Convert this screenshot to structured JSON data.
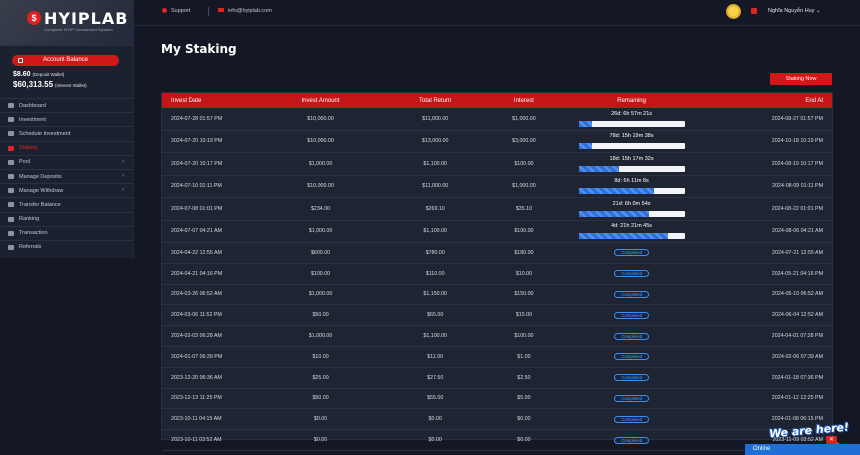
{
  "brand": {
    "name": "HYIPLAB",
    "tagline": "Complete HYIP Investment System"
  },
  "topbar": {
    "support_label": "Support",
    "email": "info@hyiplab.com",
    "user_name": "Nghĩa Nguyễn Huy"
  },
  "account": {
    "button_label": "Account Balance",
    "deposit_amount": "$8.60",
    "deposit_label": "(Deposit Wallet)",
    "interest_amount": "$60,313.55",
    "interest_label": "(Interest Wallet)"
  },
  "sidebar": {
    "items": [
      {
        "label": "Dashboard",
        "has_children": false,
        "active": false
      },
      {
        "label": "Investment",
        "has_children": false,
        "active": false
      },
      {
        "label": "Schedule Investment",
        "has_children": false,
        "active": false
      },
      {
        "label": "Staking",
        "has_children": false,
        "active": true
      },
      {
        "label": "Pool",
        "has_children": true,
        "active": false
      },
      {
        "label": "Manage Deposits",
        "has_children": true,
        "active": false
      },
      {
        "label": "Manage Withdraw",
        "has_children": true,
        "active": false
      },
      {
        "label": "Transfer Balance",
        "has_children": false,
        "active": false
      },
      {
        "label": "Ranking",
        "has_children": false,
        "active": false
      },
      {
        "label": "Transaction",
        "has_children": false,
        "active": false
      },
      {
        "label": "Referrals",
        "has_children": false,
        "active": false
      }
    ]
  },
  "page": {
    "title": "My Staking",
    "stake_button": "Staking Now"
  },
  "table": {
    "headers": [
      "Invest Date",
      "Invest Amount",
      "Total Return",
      "Interest",
      "Remaining",
      "End At"
    ],
    "rows": [
      {
        "date": "2024-07-28 01:57 PM",
        "amount": "$10,000.00",
        "ret": "$11,000.00",
        "interest": "$1,000.00",
        "remaining": "26d: 6h 57m 21s",
        "progress": 0.13,
        "end": "2024-08-27 01:57 PM"
      },
      {
        "date": "2024-07-20 10:19 PM",
        "amount": "$10,000.00",
        "ret": "$13,000.00",
        "interest": "$3,000.00",
        "remaining": "78d: 15h 19m 38s",
        "progress": 0.13,
        "end": "2024-10-18 10:19 PM"
      },
      {
        "date": "2024-07-20 10:17 PM",
        "amount": "$1,000.00",
        "ret": "$1,100.00",
        "interest": "$100.00",
        "remaining": "18d: 15h 17m 32s",
        "progress": 0.38,
        "end": "2024-08-19 10:17 PM"
      },
      {
        "date": "2024-07-10 01:11 PM",
        "amount": "$10,000.00",
        "ret": "$11,000.00",
        "interest": "$1,000.00",
        "remaining": "8d: 6h 11m 8s",
        "progress": 0.71,
        "end": "2024-08-09 01:11 PM"
      },
      {
        "date": "2024-07-08 01:01 PM",
        "amount": "$234.00",
        "ret": "$269.10",
        "interest": "$35.10",
        "remaining": "21d: 6h 0m 54s",
        "progress": 0.66,
        "end": "2024-08-22 01:01 PM"
      },
      {
        "date": "2024-07-07 04:21 AM",
        "amount": "$1,000.00",
        "ret": "$1,100.00",
        "interest": "$100.00",
        "remaining": "4d: 21h 21m 45s",
        "progress": 0.84,
        "end": "2024-08-06 04:21 AM"
      },
      {
        "date": "2024-04-22 12:55 AM",
        "amount": "$600.00",
        "ret": "$780.00",
        "interest": "$180.00",
        "status": "Completed",
        "end": "2024-07-21 12:55 AM"
      },
      {
        "date": "2024-04-21 04:16 PM",
        "amount": "$100.00",
        "ret": "$110.00",
        "interest": "$10.00",
        "status": "Completed",
        "end": "2024-05-21 04:16 PM"
      },
      {
        "date": "2024-03-26 06:52 AM",
        "amount": "$1,000.00",
        "ret": "$1,150.00",
        "interest": "$150.00",
        "status": "Completed",
        "end": "2024-05-10 06:52 AM"
      },
      {
        "date": "2024-03-06 11:52 PM",
        "amount": "$50.00",
        "ret": "$65.00",
        "interest": "$15.00",
        "status": "Completed",
        "end": "2024-06-04 12:52 AM"
      },
      {
        "date": "2024-03-03 06:28 AM",
        "amount": "$1,000.00",
        "ret": "$1,100.00",
        "interest": "$100.00",
        "status": "Completed",
        "end": "2024-04-01 07:28 PM"
      },
      {
        "date": "2024-01-07 06:39 PM",
        "amount": "$10.00",
        "ret": "$11.00",
        "interest": "$1.00",
        "status": "Completed",
        "end": "2024-02-06 07:39 AM"
      },
      {
        "date": "2023-12-20 06:36 AM",
        "amount": "$25.00",
        "ret": "$27.50",
        "interest": "$2.50",
        "status": "Completed",
        "end": "2024-01-18 07:36 PM"
      },
      {
        "date": "2023-12-13 11:25 PM",
        "amount": "$50.00",
        "ret": "$55.00",
        "interest": "$5.00",
        "status": "Completed",
        "end": "2024-01-12 12:25 PM"
      },
      {
        "date": "2023-10-11 04:15 AM",
        "amount": "$0.00",
        "ret": "$0.00",
        "interest": "$0.00",
        "status": "Completed",
        "end": "2024-01-08 06:15 PM"
      },
      {
        "date": "2023-10-11 03:52 AM",
        "amount": "$0.00",
        "ret": "$0.00",
        "interest": "$0.00",
        "status": "Completed",
        "end": "2023-11-09 03:52 AM"
      },
      {
        "date": "2023-10-11 01:43 AM",
        "amount": "$0.00",
        "ret": "$0.00",
        "interest": "$0.00",
        "status": "Completed",
        "end": "2023-10-11 01:43 AM"
      }
    ]
  },
  "chat": {
    "banner": "We are here!",
    "status": "Online",
    "badge": "1"
  }
}
